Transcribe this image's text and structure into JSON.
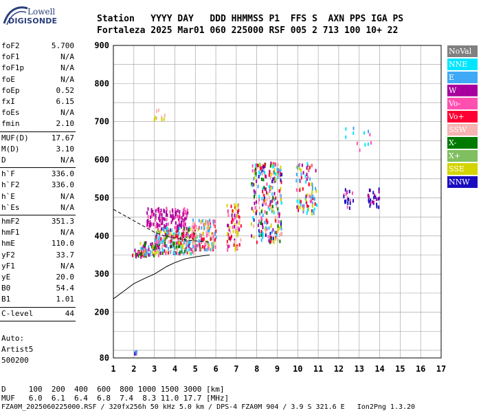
{
  "logo": {
    "line1": "Lowell",
    "line2": "DIGISONDE"
  },
  "header": {
    "row1": "Station   YYYY DAY   DDD HHMMSS P1  FFS S  AXN PPS IGA PS",
    "row2": "Fortaleza 2025 Mar01 060 225000 RSF 005 2 713 100 10+ 22"
  },
  "params_group1": [
    {
      "k": "foF2",
      "v": "5.700"
    },
    {
      "k": "foF1",
      "v": "N/A"
    },
    {
      "k": "foF1p",
      "v": "N/A"
    },
    {
      "k": "foE",
      "v": "N/A"
    },
    {
      "k": "foEp",
      "v": "0.52"
    },
    {
      "k": "fxI",
      "v": "6.15"
    },
    {
      "k": "foEs",
      "v": "N/A"
    },
    {
      "k": "fmin",
      "v": "2.10"
    }
  ],
  "params_group2": [
    {
      "k": "MUF(D)",
      "v": "17.67"
    },
    {
      "k": "M(D)",
      "v": "3.10"
    },
    {
      "k": "D",
      "v": "N/A"
    }
  ],
  "params_group3": [
    {
      "k": "h`F",
      "v": "336.0"
    },
    {
      "k": "h`F2",
      "v": "336.0"
    },
    {
      "k": "h`E",
      "v": "N/A"
    },
    {
      "k": "h`Es",
      "v": "N/A"
    }
  ],
  "params_group4": [
    {
      "k": "hmF2",
      "v": "351.3"
    },
    {
      "k": "hmF1",
      "v": "N/A"
    },
    {
      "k": "hmE",
      "v": "110.0"
    },
    {
      "k": "yF2",
      "v": "33.7"
    },
    {
      "k": "yF1",
      "v": "N/A"
    },
    {
      "k": "yE",
      "v": "20.0"
    },
    {
      "k": "B0",
      "v": "54.4"
    },
    {
      "k": "B1",
      "v": "1.01"
    }
  ],
  "clevel": {
    "k": "C-level",
    "v": "44"
  },
  "auto": {
    "line1": "Auto:",
    "line2": "Artist5",
    "line3": "500200"
  },
  "legend": [
    {
      "label": "NoVal",
      "color": "#808080"
    },
    {
      "label": "NNE",
      "color": "#00e5ff"
    },
    {
      "label": "E",
      "color": "#3fa9f5"
    },
    {
      "label": "W",
      "color": "#a8009e"
    },
    {
      "label": "Vo-",
      "color": "#ff4fb0"
    },
    {
      "label": "Vo+",
      "color": "#ff0033"
    },
    {
      "label": "SSW",
      "color": "#f7b2b2"
    },
    {
      "label": "X-",
      "color": "#007a00"
    },
    {
      "label": "X+",
      "color": "#7fbf5f"
    },
    {
      "label": "SSE",
      "color": "#d4d400"
    },
    {
      "label": "NNW",
      "color": "#1a0dbf"
    }
  ],
  "footer": {
    "row1": "D     100  200  400  600  800 1000 1500 3000 [km]",
    "row2": "MUF   6.0  6.1  6.4  6.8  7.4  8.3 11.0 17.7 [MHz]",
    "row3": "FZA0M_2025060225000.RSF / 320fx256h 50 kHz 5.0 km / DPS-4 FZA0M 904 / 3.9 S 321.6 E   Ion2Png 1.3.20"
  },
  "chart_data": {
    "type": "scatter",
    "xlim": [
      1,
      17
    ],
    "ylim": [
      80,
      900
    ],
    "x_ticks": [
      1,
      2,
      3,
      4,
      5,
      6,
      7,
      8,
      9,
      10,
      11,
      12,
      13,
      14,
      15,
      16,
      17
    ],
    "y_ticks": [
      80,
      200,
      300,
      400,
      500,
      600,
      700,
      800,
      900
    ],
    "grid": true,
    "clusters": [
      {
        "x0": 1.9,
        "x1": 2.6,
        "y0": 340,
        "y1": 362,
        "n": 30,
        "colors": [
          "#d4d400",
          "#ff0033",
          "#a8009e",
          "#007a00"
        ]
      },
      {
        "x0": 2.2,
        "x1": 3.2,
        "y0": 345,
        "y1": 380,
        "n": 60,
        "colors": [
          "#d4d400",
          "#a8009e",
          "#ff4fb0",
          "#007a00",
          "#3fa9f5"
        ]
      },
      {
        "x0": 2.6,
        "x1": 4.6,
        "y0": 420,
        "y1": 470,
        "n": 140,
        "colors": [
          "#a8009e",
          "#a8009e",
          "#ff4fb0"
        ]
      },
      {
        "x0": 3.0,
        "x1": 5.0,
        "y0": 350,
        "y1": 420,
        "n": 260,
        "colors": [
          "#d4d400",
          "#3fa9f5",
          "#ff4fb0",
          "#f7b2b2",
          "#ff0033",
          "#00e5ff",
          "#a8009e",
          "#007a00"
        ]
      },
      {
        "x0": 4.8,
        "x1": 6.0,
        "y0": 360,
        "y1": 440,
        "n": 140,
        "colors": [
          "#ff0033",
          "#ff4fb0",
          "#f7b2b2",
          "#d4d400",
          "#3fa9f5",
          "#7fbf5f"
        ]
      },
      {
        "x0": 6.5,
        "x1": 7.2,
        "y0": 360,
        "y1": 480,
        "n": 80,
        "colors": [
          "#ff0033",
          "#ff4fb0",
          "#f7b2b2",
          "#d4d400",
          "#a8009e"
        ]
      },
      {
        "x0": 7.7,
        "x1": 9.2,
        "y0": 380,
        "y1": 590,
        "n": 260,
        "colors": [
          "#ff0033",
          "#ff4fb0",
          "#a8009e",
          "#3fa9f5",
          "#f7b2b2",
          "#d4d400",
          "#1a0dbf",
          "#007a00",
          "#00e5ff"
        ]
      },
      {
        "x0": 9.9,
        "x1": 10.9,
        "y0": 450,
        "y1": 590,
        "n": 90,
        "colors": [
          "#3fa9f5",
          "#00e5ff",
          "#ff4fb0",
          "#a8009e",
          "#ff0033",
          "#d4d400"
        ]
      },
      {
        "x0": 12.2,
        "x1": 12.7,
        "y0": 470,
        "y1": 520,
        "n": 20,
        "colors": [
          "#1a0dbf",
          "#1a0dbf",
          "#ff4fb0"
        ]
      },
      {
        "x0": 13.4,
        "x1": 14.0,
        "y0": 470,
        "y1": 520,
        "n": 25,
        "colors": [
          "#1a0dbf",
          "#1a0dbf",
          "#a8009e"
        ]
      },
      {
        "x0": 12.2,
        "x1": 13.6,
        "y0": 620,
        "y1": 690,
        "n": 12,
        "colors": [
          "#00e5ff",
          "#3fa9f5",
          "#ff4fb0"
        ]
      },
      {
        "x0": 2.9,
        "x1": 3.5,
        "y0": 700,
        "y1": 730,
        "n": 10,
        "colors": [
          "#d4d400",
          "#f7b2b2"
        ]
      },
      {
        "x0": 2.0,
        "x1": 2.1,
        "y0": 86,
        "y1": 96,
        "n": 6,
        "colors": [
          "#1a0dbf",
          "#a8009e",
          "#3fa9f5"
        ]
      }
    ],
    "curve_solid": [
      [
        1.0,
        235
      ],
      [
        1.5,
        255
      ],
      [
        2.0,
        275
      ],
      [
        2.5,
        288
      ],
      [
        3.0,
        300
      ],
      [
        3.3,
        310
      ],
      [
        3.6,
        320
      ],
      [
        4.0,
        330
      ],
      [
        4.5,
        340
      ],
      [
        5.0,
        345
      ],
      [
        5.5,
        349
      ],
      [
        5.7,
        350
      ]
    ],
    "curve_dashed": [
      [
        1.0,
        470
      ],
      [
        1.5,
        455
      ],
      [
        2.0,
        440
      ],
      [
        2.5,
        425
      ],
      [
        3.0,
        410
      ],
      [
        3.5,
        400
      ],
      [
        4.0,
        395
      ],
      [
        4.5,
        390
      ],
      [
        5.0,
        387
      ],
      [
        5.5,
        385
      ],
      [
        5.7,
        384
      ]
    ]
  }
}
